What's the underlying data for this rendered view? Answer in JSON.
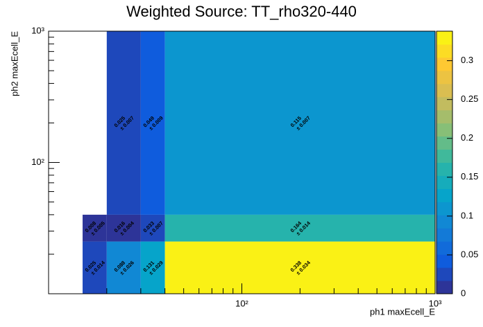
{
  "chart_data": {
    "type": "heatmap",
    "title": "Weighted Source: TT_rho320-440",
    "x_label": "ph1 maxEcell_E",
    "y_label": "ph2 maxEcell_E",
    "x_edges": [
      15,
      20,
      30,
      40,
      1000
    ],
    "y_edges": [
      10,
      25,
      40,
      1000
    ],
    "values": [
      [
        0.025,
        0.088,
        0.131,
        0.338
      ],
      [
        0.008,
        0.016,
        0.033,
        0.164
      ],
      [
        null,
        0.025,
        0.049,
        0.115
      ]
    ],
    "errors": [
      [
        0.014,
        0.026,
        0.029,
        0.034
      ],
      [
        0.005,
        0.004,
        0.007,
        0.014
      ],
      [
        null,
        0.007,
        0.009,
        0.007
      ]
    ],
    "error_labels": [
      [
        "± 0.014",
        "± 0.026",
        "± 0.029",
        "± 0.034"
      ],
      [
        "± 0.005",
        "± 0.004",
        "± 0.007",
        "± 0.014"
      ],
      [
        null,
        "± 0.007",
        "± 0.009",
        "± 0.007"
      ]
    ],
    "xlim": [
      10,
      1000
    ],
    "ylim": [
      10,
      1000
    ],
    "log_x": true,
    "log_y": true,
    "xticks": [
      {
        "value": 100,
        "label": "10²"
      },
      {
        "value": 1000,
        "label": "10³"
      }
    ],
    "yticks": [
      {
        "value": 100,
        "label": "10²"
      },
      {
        "value": 1000,
        "label": "10³"
      }
    ],
    "xminorticks": [
      20,
      30,
      40,
      50,
      60,
      70,
      80,
      90,
      200,
      300,
      400,
      500,
      600,
      700,
      800,
      900
    ],
    "yminorticks": [
      20,
      30,
      40,
      50,
      60,
      70,
      80,
      90,
      200,
      300,
      400,
      500,
      600,
      700,
      800,
      900
    ],
    "zlim": [
      0,
      0.338
    ],
    "zticks": [
      0,
      0.05,
      0.1,
      0.15,
      0.2,
      0.25,
      0.3
    ],
    "contours": 20,
    "palette": [
      "#352a87",
      "#0f5cdd",
      "#1481d6",
      "#06a4ca",
      "#2eb7a4",
      "#87bf77",
      "#d1bb59",
      "#fec832",
      "#f9fb0e"
    ]
  }
}
